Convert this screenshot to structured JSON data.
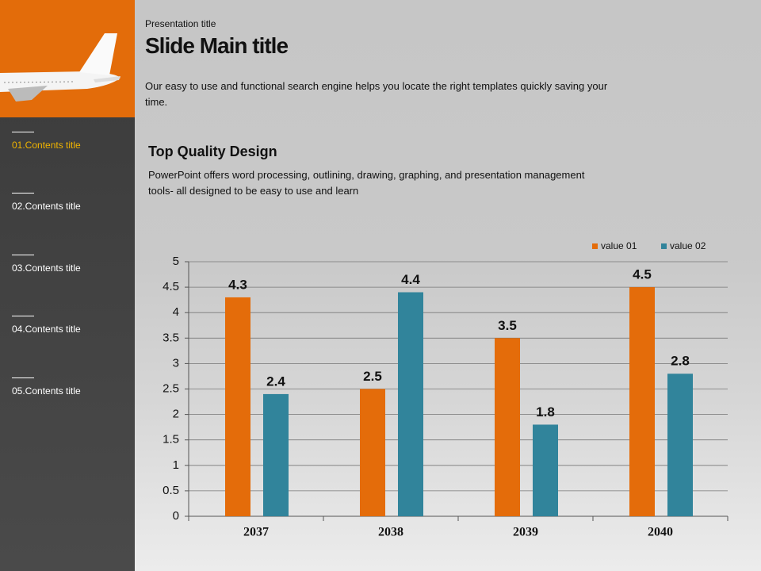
{
  "header": {
    "kicker": "Presentation title",
    "title": "Slide Main title",
    "text": "Our easy to use and functional search engine helps you locate the right templates quickly saving your time."
  },
  "menu": [
    "01.Contents title",
    "02.Contents title",
    "03.Contents title",
    "04.Contents title",
    "05.Contents title"
  ],
  "section": {
    "title": "Top Quality  Design",
    "text": "PowerPoint offers word processing, outlining, drawing, graphing, and presentation management tools- all designed to be easy to use and learn"
  },
  "chart_data": {
    "type": "bar",
    "categories": [
      "2037",
      "2038",
      "2039",
      "2040"
    ],
    "series": [
      {
        "name": "value 01",
        "color": "#e46c0a",
        "values": [
          4.3,
          2.5,
          3.5,
          4.5
        ]
      },
      {
        "name": "value 02",
        "color": "#31849b",
        "values": [
          2.4,
          4.4,
          1.8,
          2.8
        ]
      }
    ],
    "ylim": [
      0,
      5
    ],
    "yticks": [
      0,
      0.5,
      1,
      1.5,
      2,
      2.5,
      3,
      3.5,
      4,
      4.5,
      5
    ],
    "grid": true,
    "legend": "top-right"
  }
}
